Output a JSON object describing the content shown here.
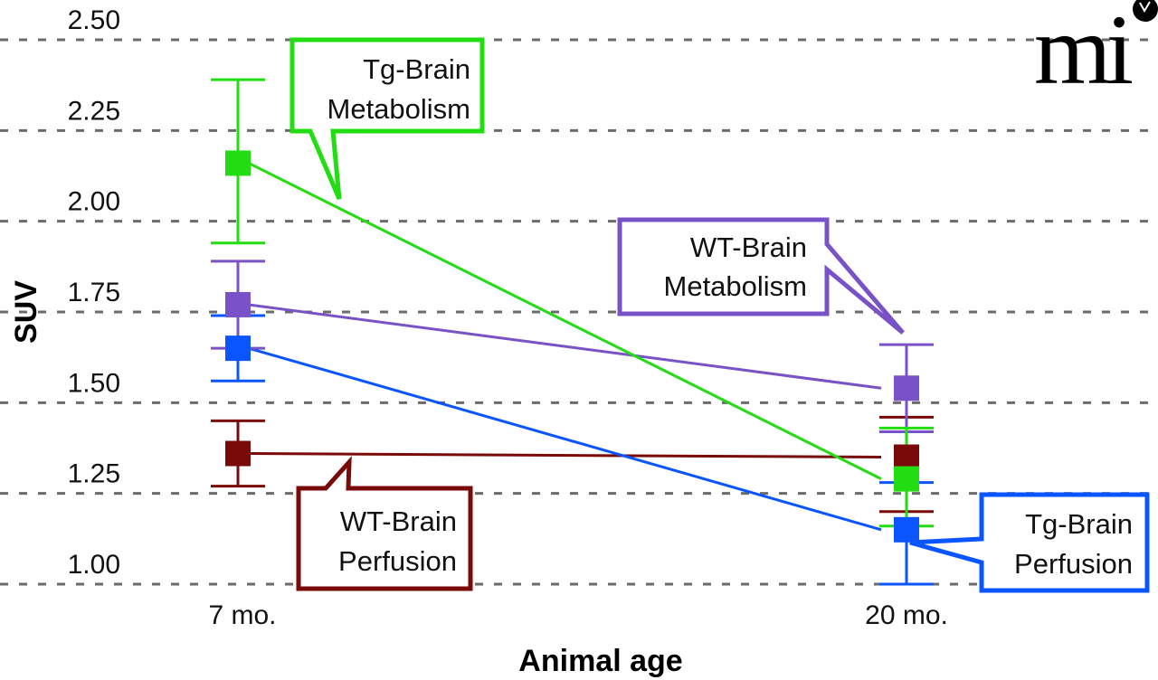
{
  "chart_data": {
    "type": "line",
    "title": "",
    "xlabel": "Animal age",
    "ylabel": "SUV",
    "categories": [
      "7 mo.",
      "20 mo."
    ],
    "ylim": [
      1.0,
      2.5
    ],
    "yticks": [
      "1.00",
      "1.25",
      "1.50",
      "1.75",
      "2.00",
      "2.25",
      "2.50"
    ],
    "ytick_values": [
      1.0,
      1.25,
      1.5,
      1.75,
      2.0,
      2.25,
      2.5
    ],
    "grid": "horizontal-dashed",
    "legend": "callouts",
    "series": [
      {
        "name": "Tg-Brain Metabolism",
        "label_lines": [
          "Tg-Brain",
          "Metabolism"
        ],
        "color": "#22dd11",
        "values": [
          2.16,
          1.29
        ],
        "err_low": [
          1.94,
          1.16
        ],
        "err_high": [
          2.39,
          1.43
        ]
      },
      {
        "name": "WT-Brain Metabolism",
        "label_lines": [
          "WT-Brain",
          "Metabolism"
        ],
        "color": "#7a52c7",
        "values": [
          1.77,
          1.54
        ],
        "err_low": [
          1.65,
          1.42
        ],
        "err_high": [
          1.89,
          1.66
        ]
      },
      {
        "name": "Tg-Brain Perfusion",
        "label_lines": [
          "Tg-Brain",
          "Perfusion"
        ],
        "color": "#0a55ff",
        "values": [
          1.65,
          1.15
        ],
        "err_low": [
          1.56,
          1.0
        ],
        "err_high": [
          1.74,
          1.28
        ]
      },
      {
        "name": "WT-Brain Perfusion",
        "label_lines": [
          "WT-Brain",
          "Perfusion"
        ],
        "color": "#7a0a0a",
        "values": [
          1.36,
          1.35
        ],
        "err_low": [
          1.27,
          1.2
        ],
        "err_high": [
          1.45,
          1.46
        ]
      }
    ]
  },
  "logo": {
    "text": "mi"
  }
}
